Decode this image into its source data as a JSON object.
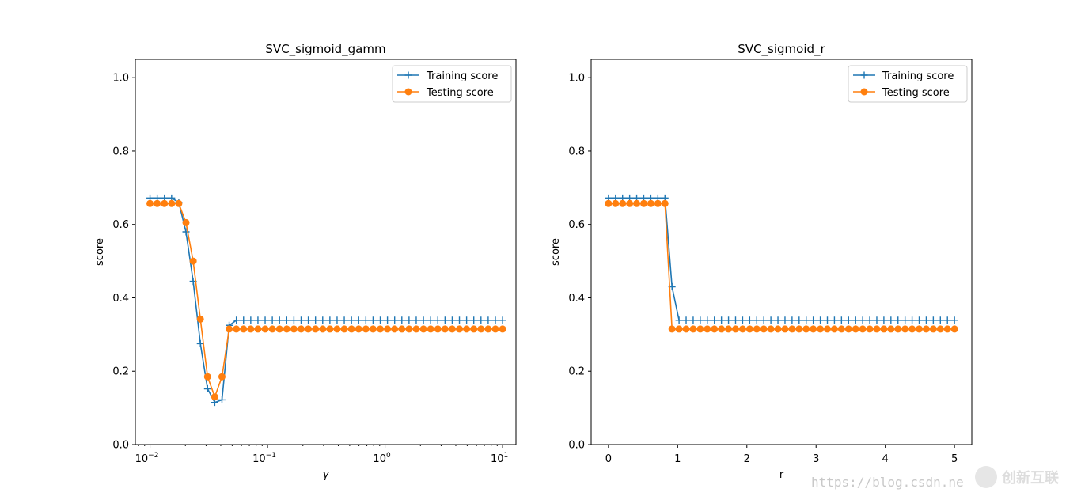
{
  "chart_data": [
    {
      "type": "line",
      "title": "SVC_sigmoid_gamm",
      "xlabel": "γ",
      "ylabel": "score",
      "xscale": "log",
      "xlim": [
        0.0075,
        13
      ],
      "ylim": [
        0,
        1.05
      ],
      "xticks": [
        0.01,
        0.1,
        1,
        10
      ],
      "xtick_labels": [
        "10−2",
        "10−1",
        "100",
        "101"
      ],
      "yticks": [
        0,
        0.2,
        0.4,
        0.6,
        0.8,
        1.0
      ],
      "ytick_labels": [
        "0.0",
        "0.2",
        "0.4",
        "0.6",
        "0.8",
        "1.0"
      ],
      "legend": "top-right",
      "grid": false,
      "x": {
        "logspace": [
          -2,
          1,
          50
        ]
      },
      "series": [
        {
          "name": "Training score",
          "color": "#1f77b4",
          "marker": "+",
          "values": [
            0.672,
            0.672,
            0.672,
            0.672,
            0.66,
            0.58,
            0.445,
            0.275,
            0.152,
            0.115,
            0.122,
            0.325,
            0.339
          ],
          "fill_rest": 0.339
        },
        {
          "name": "Testing score",
          "color": "#ff7f0e",
          "marker": "o",
          "values": [
            0.657,
            0.657,
            0.657,
            0.657,
            0.657,
            0.605,
            0.5,
            0.342,
            0.185,
            0.13,
            0.185,
            0.315
          ],
          "fill_rest": 0.315
        }
      ]
    },
    {
      "type": "line",
      "title": "SVC_sigmoid_r",
      "xlabel": "r",
      "ylabel": "score",
      "xscale": "linear",
      "xlim": [
        -0.25,
        5.25
      ],
      "ylim": [
        0,
        1.05
      ],
      "xticks": [
        0,
        1,
        2,
        3,
        4,
        5
      ],
      "xtick_labels": [
        "0",
        "1",
        "2",
        "3",
        "4",
        "5"
      ],
      "yticks": [
        0,
        0.2,
        0.4,
        0.6,
        0.8,
        1.0
      ],
      "ytick_labels": [
        "0.0",
        "0.2",
        "0.4",
        "0.6",
        "0.8",
        "1.0"
      ],
      "legend": "top-right",
      "grid": false,
      "x": {
        "linspace": [
          0,
          5,
          50
        ]
      },
      "series": [
        {
          "name": "Training score",
          "color": "#1f77b4",
          "marker": "+",
          "values": [
            0.672,
            0.672,
            0.672,
            0.672,
            0.672,
            0.672,
            0.672,
            0.672,
            0.672,
            0.43,
            0.339
          ],
          "fill_rest": 0.339
        },
        {
          "name": "Testing score",
          "color": "#ff7f0e",
          "marker": "o",
          "values": [
            0.657,
            0.657,
            0.657,
            0.657,
            0.657,
            0.657,
            0.657,
            0.657,
            0.657,
            0.315
          ],
          "fill_rest": 0.315
        }
      ]
    }
  ],
  "watermark": {
    "url": "https://blog.csdn.ne",
    "logo": "创新互联"
  }
}
